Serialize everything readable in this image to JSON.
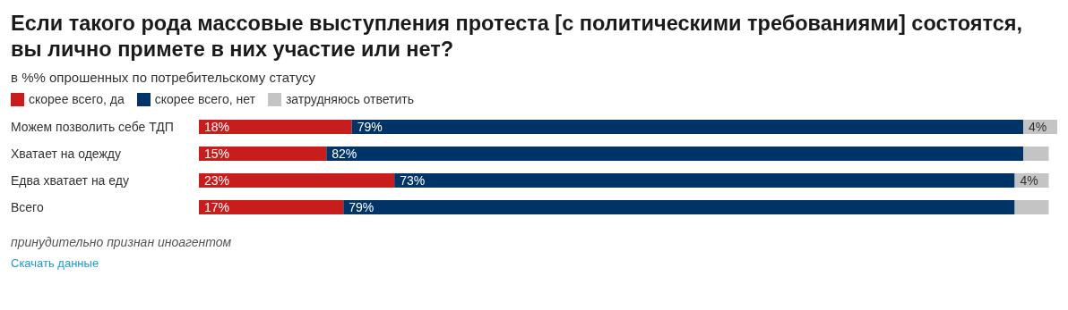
{
  "chart_data": {
    "type": "bar",
    "orientation": "horizontal",
    "stacked": true,
    "title": "Если такого рода массовые выступления протеста [с политическими требованиями] состоятся, вы лично примете в них участие или нет?",
    "subtitle": "в %% опрошенных по потребительскому статусу",
    "categories": [
      "Можем позволить себе ТДП",
      "Хватает на одежду",
      "Едва хватает на еду",
      "Всего"
    ],
    "series": [
      {
        "name": "скорее всего, да",
        "color": "#c71e1d",
        "values": [
          18,
          15,
          23,
          17
        ],
        "value_labels": [
          "18%",
          "15%",
          "23%",
          "17%"
        ]
      },
      {
        "name": "скорее всего, нет",
        "color": "#003366",
        "values": [
          79,
          82,
          73,
          79
        ],
        "value_labels": [
          "79%",
          "82%",
          "73%",
          "79%"
        ]
      },
      {
        "name": "затрудняюсь ответить",
        "color": "#c4c4c4",
        "values": [
          4,
          3,
          4,
          4
        ],
        "value_labels": [
          "4%",
          null,
          "4%",
          null
        ]
      }
    ],
    "legend": "top left",
    "annotations": [
      "принудительно признан иноагентом",
      "Скачать данные"
    ]
  }
}
